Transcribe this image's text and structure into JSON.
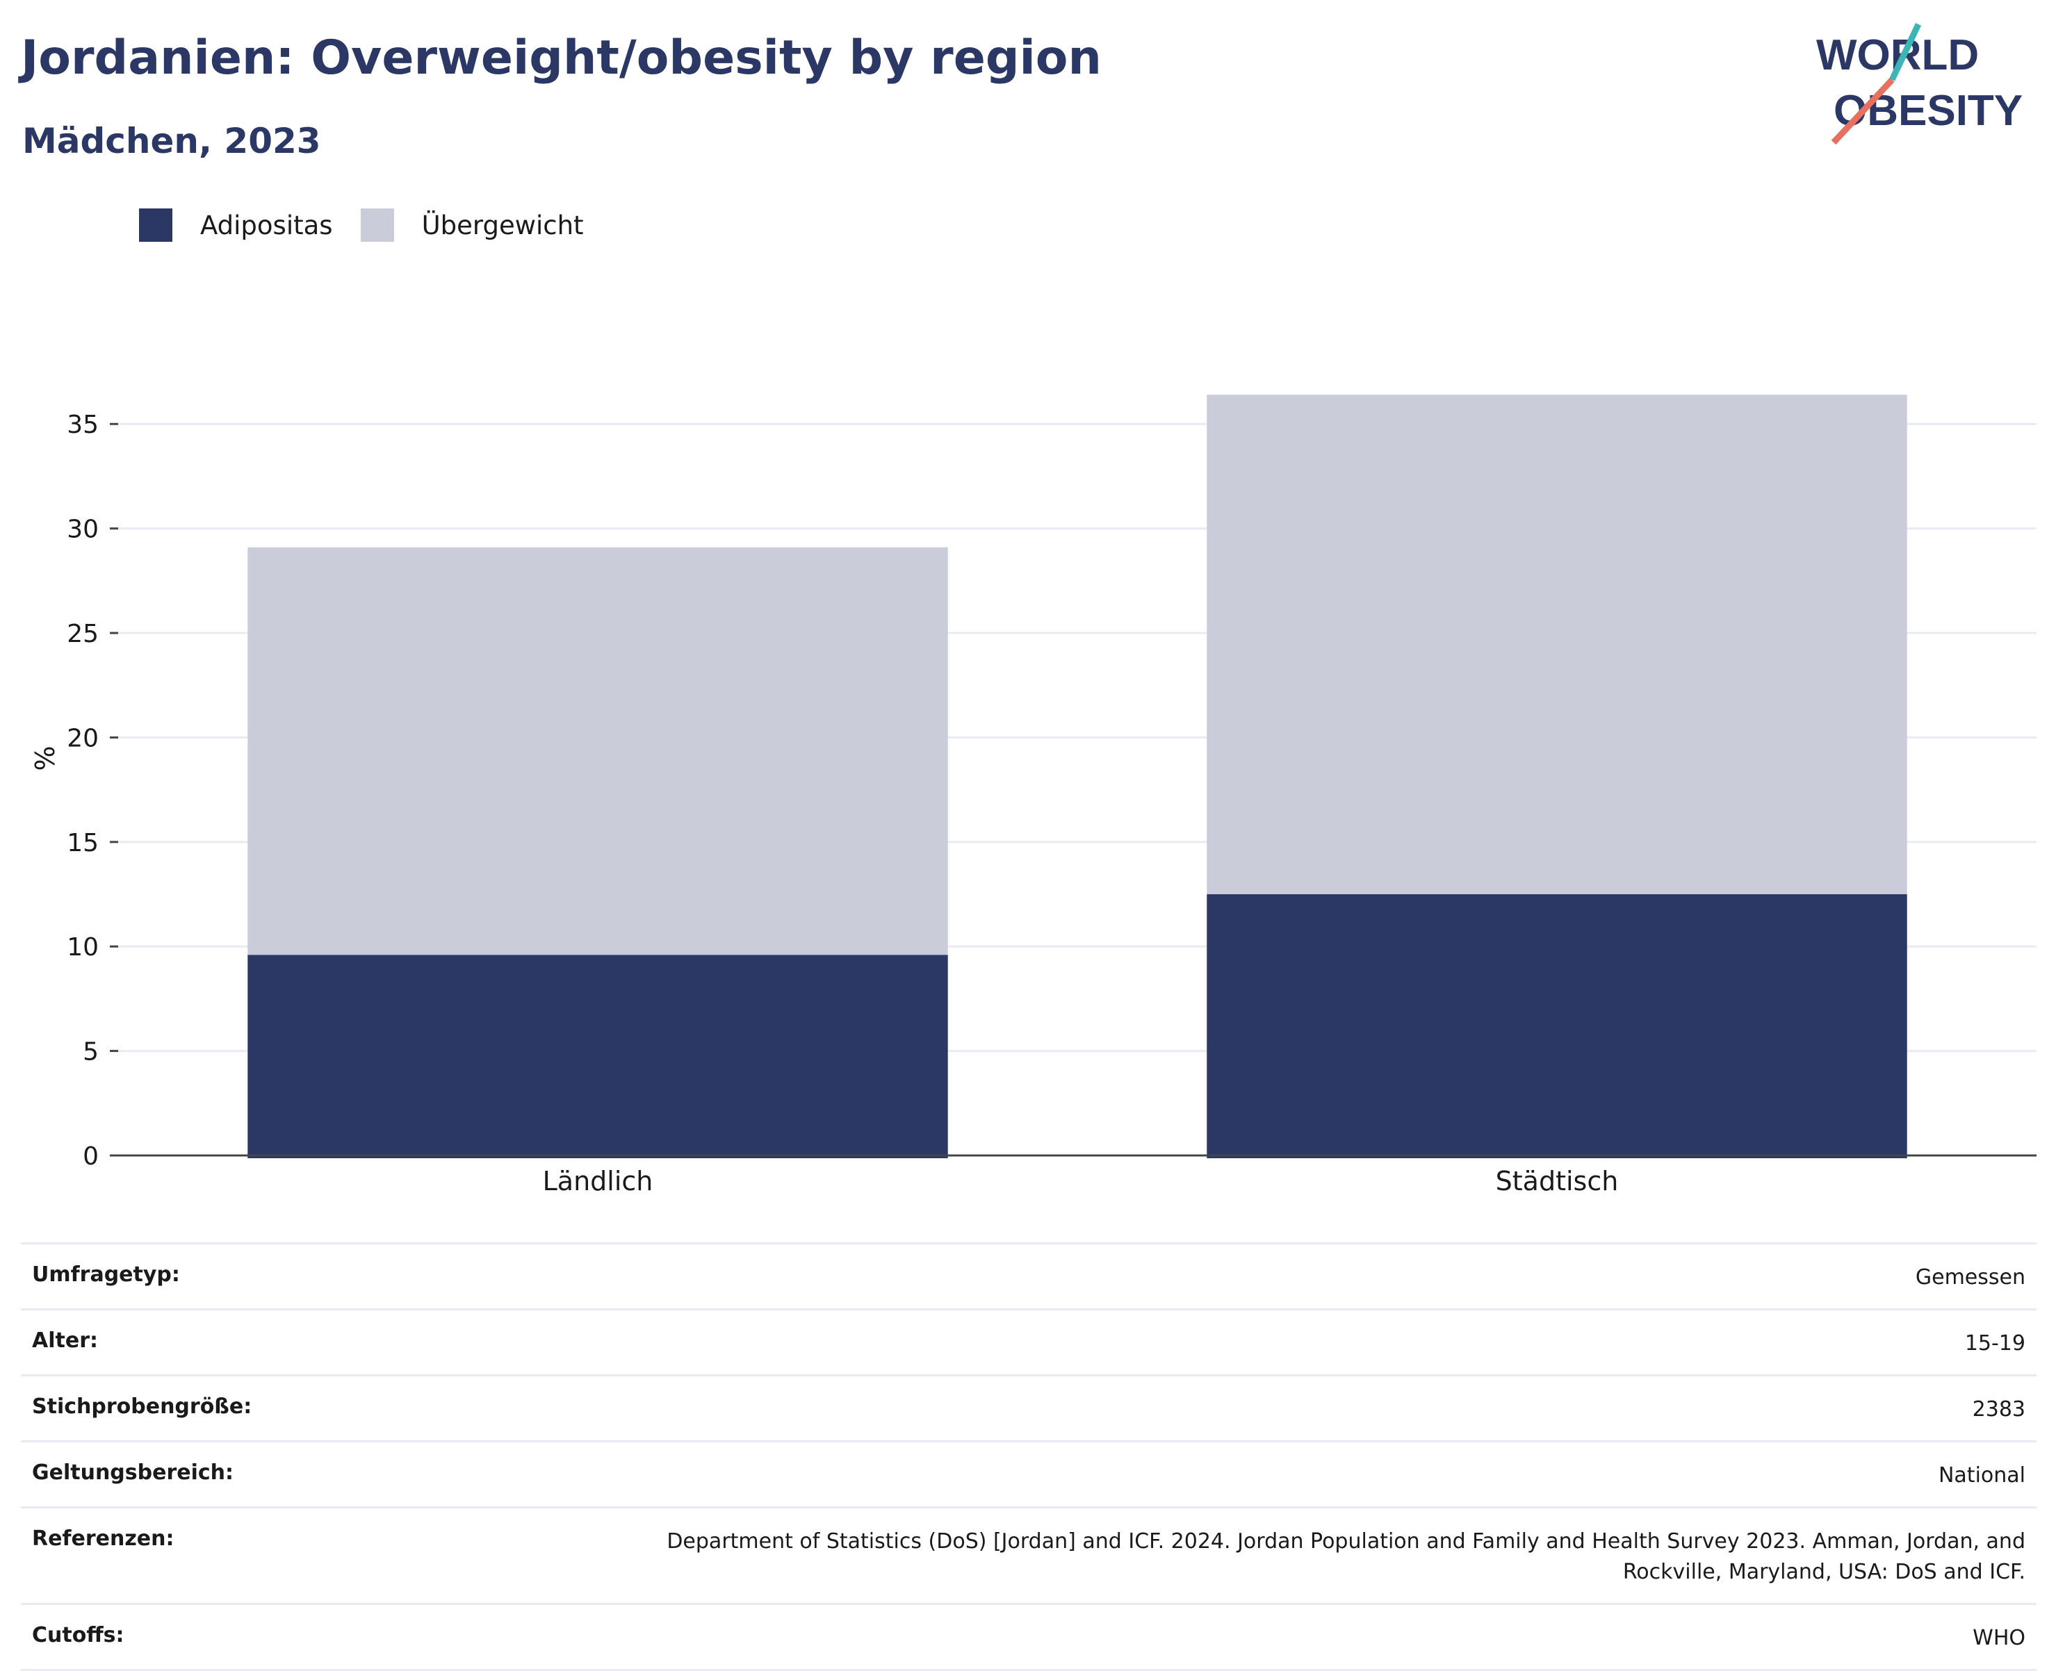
{
  "header": {
    "title": "Jordanien: Overweight/obesity by region",
    "subtitle": "Mädchen, 2023"
  },
  "logo": {
    "line1": "WORLD",
    "line2": "OBESITY"
  },
  "colors": {
    "obesity": "#2b3764",
    "overweight": "#cacdd9",
    "grid": "#e8ebf3",
    "axis": "#444444",
    "logo_teal": "#3db5b5",
    "logo_coral": "#e8705e"
  },
  "chart_data": {
    "type": "bar",
    "stacked": true,
    "categories": [
      "Ländlich",
      "Städtisch"
    ],
    "series": [
      {
        "name": "Adipositas",
        "values": [
          9.6,
          12.5
        ]
      },
      {
        "name": "Übergewicht",
        "values": [
          19.5,
          23.9
        ]
      }
    ],
    "ylabel": "%",
    "xlabel": "",
    "ylim": [
      0,
      38
    ],
    "yticks": [
      0,
      5,
      10,
      15,
      20,
      25,
      30,
      35
    ],
    "grid": true,
    "legend_position": "top-left"
  },
  "meta": [
    {
      "label": "Umfragetyp:",
      "value": "Gemessen"
    },
    {
      "label": "Alter:",
      "value": "15-19"
    },
    {
      "label": "Stichprobengröße:",
      "value": "2383"
    },
    {
      "label": "Geltungsbereich:",
      "value": "National"
    },
    {
      "label": "Referenzen:",
      "value": "Department of Statistics (DoS) [Jordan] and ICF. 2024. Jordan Population and Family and Health Survey 2023. Amman, Jordan, and Rockville, Maryland, USA: DoS and ICF."
    },
    {
      "label": "Cutoffs:",
      "value": "WHO"
    }
  ]
}
